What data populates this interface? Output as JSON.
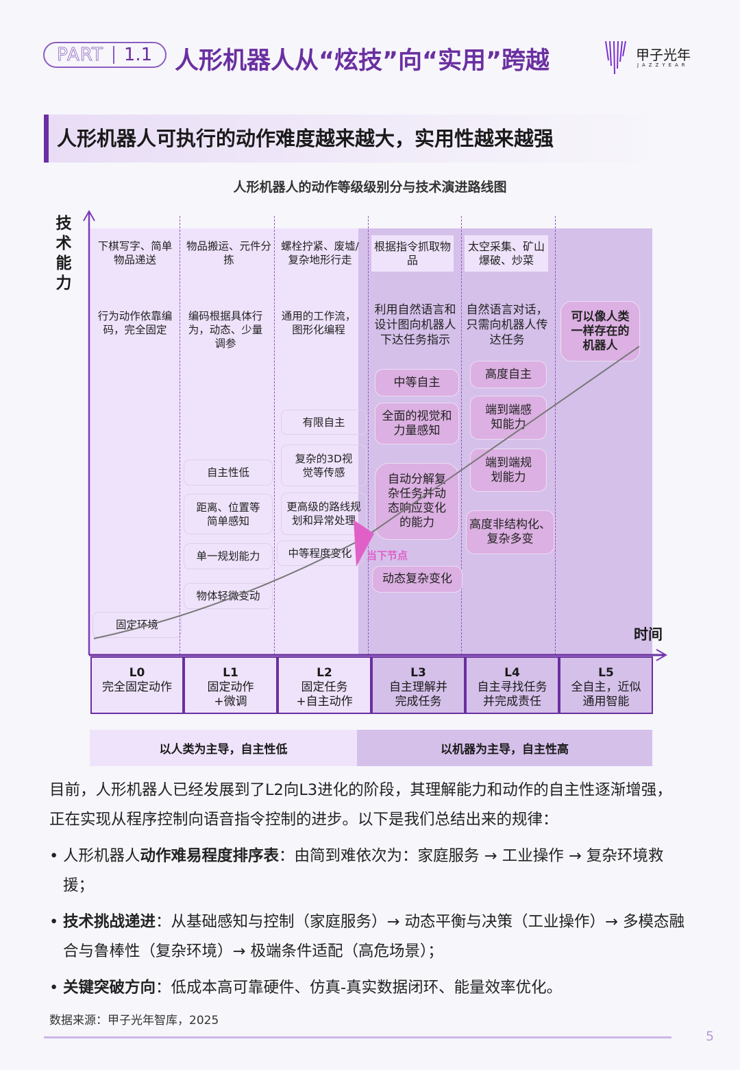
{
  "header": {
    "part": "PART",
    "section_num": "1.1",
    "title": "人形机器人从“炫技”向“实用”跨越",
    "logo_cn": "甲子光年",
    "logo_en": "JAZZYEAR"
  },
  "section_heading": "人形机器人可执行的动作难度越来越大，实用性越来越强",
  "diagram": {
    "title": "人形机器人的动作等级级别分与技术演进路线图",
    "y_label": "技术能力",
    "x_label": "时间",
    "current_marker": "当下节点",
    "colors": {
      "light": "#efe3fb",
      "dark": "#d5c0ea",
      "pink_box": "#dcb0e2",
      "accent": "#6a2fa0",
      "marker": "#e060c8"
    },
    "columns": [
      {
        "scenario": "下棋写字、简单物品递送",
        "programming": "行为动作依靠编码，完全固定",
        "items": [
          "固定环境"
        ]
      },
      {
        "scenario": "物品搬运、元件分拣",
        "programming": "编码根据具体行为，动态、少量调参",
        "items": [
          "自主性低",
          "距离、位置等简单感知",
          "单一规划能力",
          "物体轻微变动"
        ]
      },
      {
        "scenario": "螺栓拧紧、废墟/复杂地形行走",
        "programming": "通用的工作流，图形化编程",
        "items": [
          "有限自主",
          "复杂的3D视觉等传感",
          "更高级的路线规划和异常处理",
          "中等程度变化"
        ]
      },
      {
        "scenario": "根据指令抓取物品",
        "programming": "利用自然语言和设计图向机器人下达任务指示",
        "items": [
          "中等自主",
          "全面的视觉和力量感知",
          "自动分解复杂任务并动态响应变化的能力",
          "动态复杂变化"
        ]
      },
      {
        "scenario": "太空采集、矿山爆破、炒菜",
        "programming": "自然语言对话，只需向机器人传达任务",
        "items": [
          "高度自主",
          "端到端感知能力",
          "端到端规划能力",
          "高度非结构化、复杂多变"
        ]
      },
      {
        "goal": "可以像人类一样存在的机器人"
      }
    ],
    "levels": [
      {
        "code": "L0",
        "desc": "完全固定动作"
      },
      {
        "code": "L1",
        "desc": "固定动作+微调"
      },
      {
        "code": "L2",
        "desc": "固定任务+自主动作"
      },
      {
        "code": "L3",
        "desc": "自主理解并完成任务"
      },
      {
        "code": "L4",
        "desc": "自主寻找任务并完成责任"
      },
      {
        "code": "L5",
        "desc": "全自主，近似通用智能"
      }
    ],
    "phases": [
      "以人类为主导，自主性低",
      "以机器为主导，自主性高"
    ]
  },
  "body": {
    "paragraph": "目前，人形机器人已经发展到了L2向L3进化的阶段，其理解能力和动作的自主性逐渐增强，正在实现从程序控制向语音指令控制的进步。以下是我们总结出来的规律：",
    "bullets": [
      {
        "pre": "人形机器人",
        "bold": "动作难易程度排序表",
        "text": "：由简到难依次为：家庭服务 → 工业操作 → 复杂环境救援；"
      },
      {
        "pre": "",
        "bold": "技术挑战递进",
        "text": "：从基础感知与控制（家庭服务）→ 动态平衡与决策（工业操作）→ 多模态融合与鲁棒性（复杂环境）→ 极端条件适配（高危场景）；"
      },
      {
        "pre": "",
        "bold": "关键突破方向",
        "text": "：低成本高可靠硬件、仿真-真实数据闭环、能量效率优化。"
      }
    ],
    "source": "数据来源：甲子光年智库，2025",
    "page": "5"
  }
}
